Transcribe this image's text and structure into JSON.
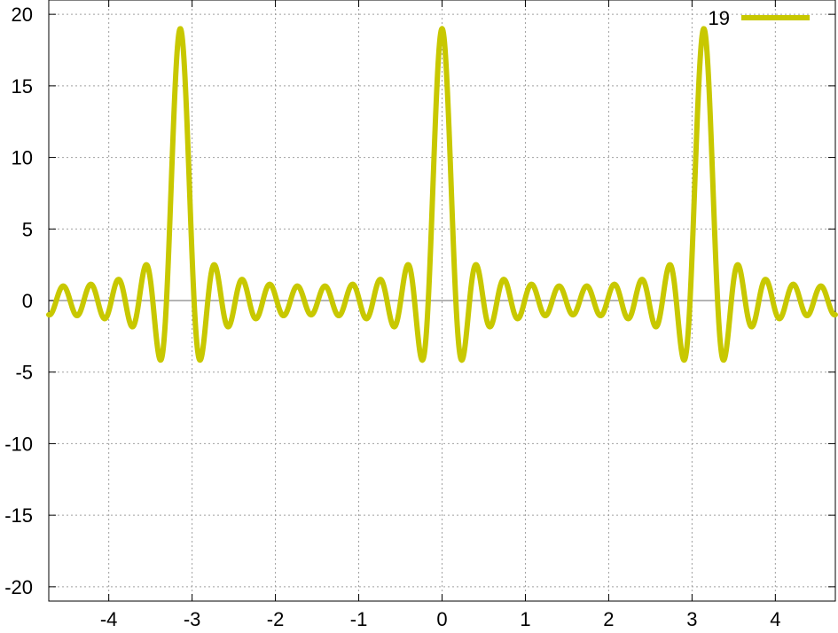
{
  "chart_data": {
    "type": "line",
    "title": "",
    "xlabel": "",
    "ylabel": "",
    "xlim": [
      -4.72,
      4.72
    ],
    "ylim": [
      -21,
      21
    ],
    "grid": true,
    "grid_style": "dotted",
    "zero_axis": true,
    "legend_position": "top-right",
    "x_ticks": [
      -4,
      -3,
      -2,
      -1,
      0,
      1,
      2,
      3,
      4
    ],
    "x_tick_labels": [
      "-4",
      "-3",
      "-2",
      "-1",
      "0",
      "1",
      "2",
      "3",
      "4"
    ],
    "y_ticks": [
      -20,
      -15,
      -10,
      -5,
      0,
      5,
      10,
      15,
      20
    ],
    "y_tick_labels": [
      "-20",
      "-15",
      "-10",
      "-5",
      "0",
      "5",
      "10",
      "15",
      "20"
    ],
    "series": [
      {
        "name": "19",
        "color": "#c8c800",
        "function": "Dirichlet kernel sin((n+1/2)*2x)/sin(x), n=9",
        "x_sample": [
          -4.72,
          -4.0,
          -3.0,
          -2.0,
          -1.0,
          -0.4,
          -0.24,
          0,
          0.24,
          0.4,
          1.0,
          2.0,
          3.0,
          4.0,
          4.72
        ],
        "y_sample": [
          -1.0,
          -1.0,
          -0.2,
          -0.6,
          0.2,
          2.0,
          -4.7,
          19.0,
          -4.7,
          2.0,
          0.2,
          -0.6,
          -0.2,
          -1.0,
          -1.0
        ]
      }
    ]
  }
}
